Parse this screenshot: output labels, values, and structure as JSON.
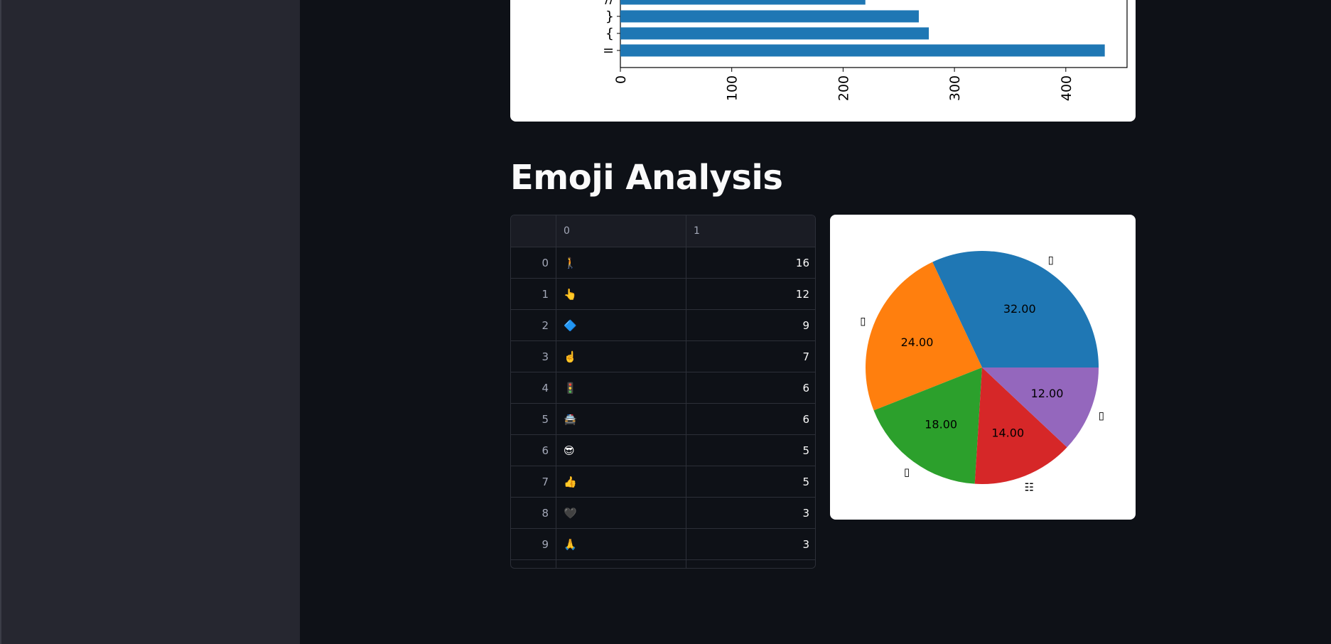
{
  "section_heading": "Emoji Analysis",
  "chart_data": [
    {
      "type": "bar",
      "orientation": "horizontal",
      "categories": [
        "=",
        "{",
        "}",
        "//"
      ],
      "values": [
        435,
        277,
        268,
        220
      ],
      "xticks": [
        "0",
        "100",
        "200",
        "300",
        "400"
      ],
      "xlim": [
        0,
        455
      ],
      "color": "#1f77b4"
    },
    {
      "type": "pie",
      "values": [
        32,
        24,
        18,
        14,
        12
      ],
      "value_labels": [
        "32.00",
        "24.00",
        "18.00",
        "14.00",
        "12.00"
      ],
      "slice_labels": [
        "▯",
        "▯",
        "▯",
        "☷",
        "▯"
      ],
      "colors": [
        "#1f77b4",
        "#ff7f0e",
        "#2ca02c",
        "#d62728",
        "#9467bd"
      ]
    }
  ],
  "table": {
    "columns": [
      "",
      "0",
      "1"
    ],
    "rows": [
      {
        "index": "0",
        "emoji": "🚶",
        "count": "16"
      },
      {
        "index": "1",
        "emoji": "👆",
        "count": "12"
      },
      {
        "index": "2",
        "emoji": "🔷",
        "count": "9"
      },
      {
        "index": "3",
        "emoji": "☝️",
        "count": "7"
      },
      {
        "index": "4",
        "emoji": "🚦",
        "count": "6"
      },
      {
        "index": "5",
        "emoji": "🚔",
        "count": "6"
      },
      {
        "index": "6",
        "emoji": "😎",
        "count": "5"
      },
      {
        "index": "7",
        "emoji": "👍",
        "count": "5"
      },
      {
        "index": "8",
        "emoji": "🖤",
        "count": "3"
      },
      {
        "index": "9",
        "emoji": "🙏",
        "count": "3"
      }
    ]
  }
}
